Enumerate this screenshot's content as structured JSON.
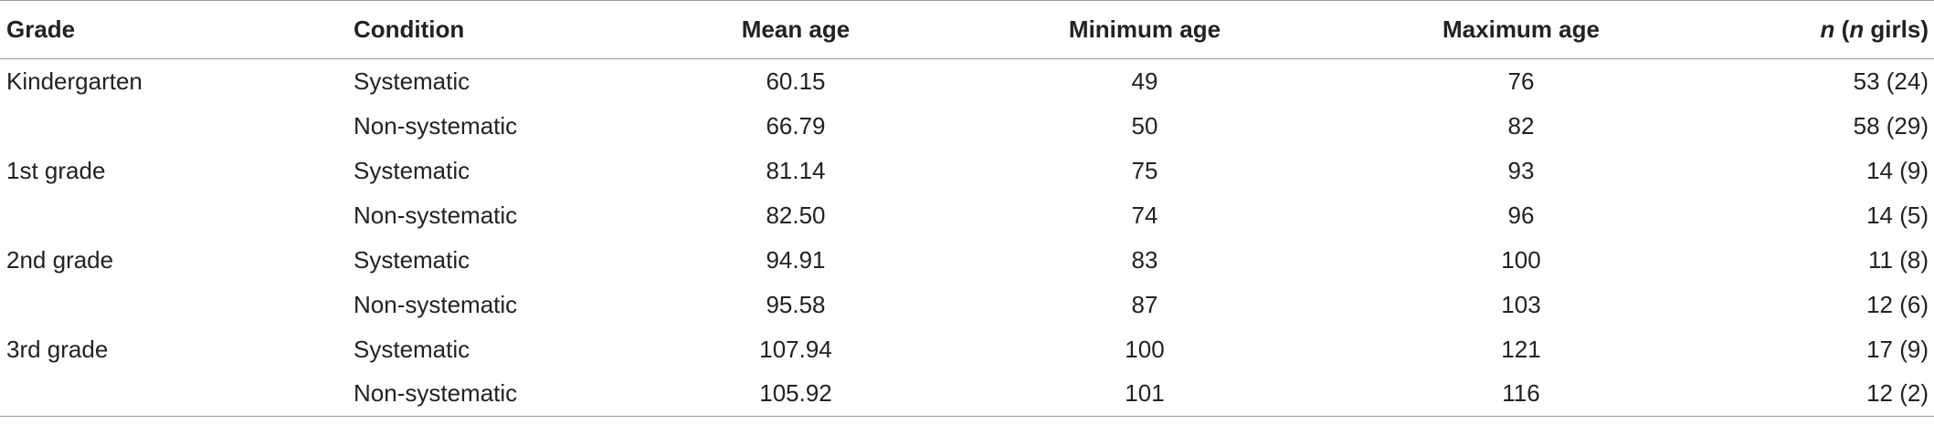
{
  "table": {
    "header": [
      "Grade",
      "Condition",
      "Mean age",
      "Minimum age",
      "Maximum age",
      [
        "n",
        " (",
        "n",
        " girls)"
      ]
    ],
    "groups": [
      {
        "grade": "Kindergarten",
        "rows": [
          [
            "Systematic",
            "60.15",
            "49",
            "76",
            "53 (24)"
          ],
          [
            "Non-systematic",
            "66.79",
            "50",
            "82",
            "58 (29)"
          ]
        ]
      },
      {
        "grade": "1st grade",
        "rows": [
          [
            "Systematic",
            "81.14",
            "75",
            "93",
            "14 (9)"
          ],
          [
            "Non-systematic",
            "82.50",
            "74",
            "96",
            "14 (5)"
          ]
        ]
      },
      {
        "grade": "2nd grade",
        "rows": [
          [
            "Systematic",
            "94.91",
            "83",
            "100",
            "11 (8)"
          ],
          [
            "Non-systematic",
            "95.58",
            "87",
            "103",
            "12 (6)"
          ]
        ]
      },
      {
        "grade": "3rd grade",
        "rows": [
          [
            "Systematic",
            "107.94",
            "100",
            "121",
            "17 (9)"
          ],
          [
            "Non-systematic",
            "105.92",
            "101",
            "116",
            "12 (2)"
          ]
        ]
      }
    ]
  }
}
